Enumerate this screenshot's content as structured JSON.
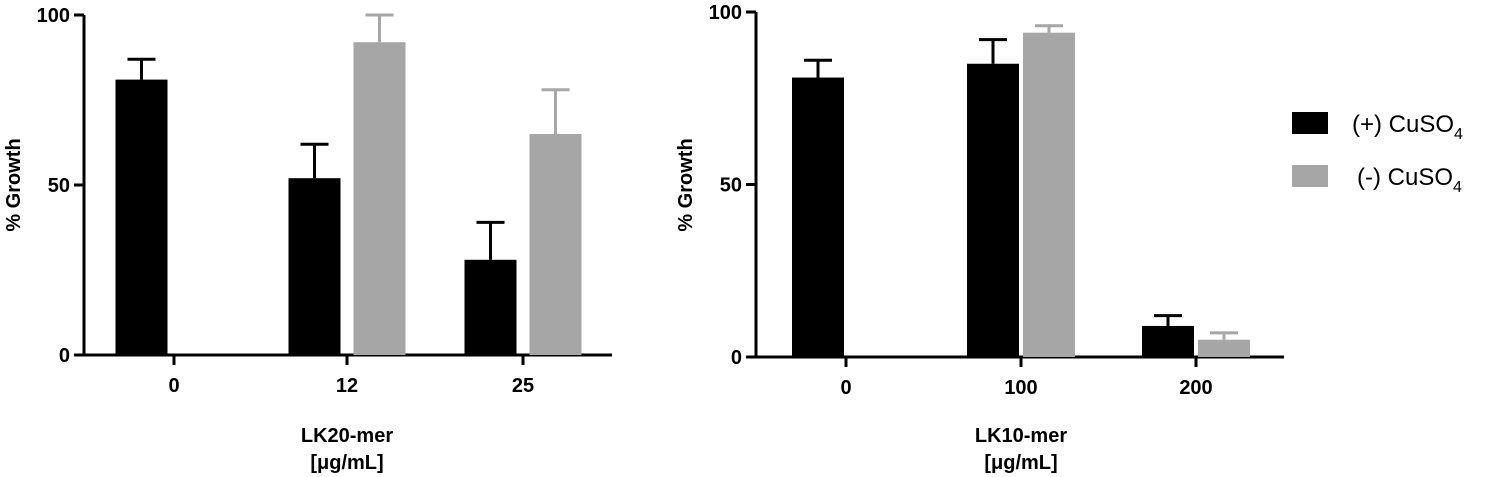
{
  "legend": {
    "position": "right",
    "items": [
      {
        "label": "(+) CuSO",
        "subscript": "4",
        "color": "#000000"
      },
      {
        "label": "(-) CuSO",
        "subscript": "4",
        "color": "#a6a6a6"
      }
    ]
  },
  "chart_data": [
    {
      "type": "bar",
      "title": "",
      "xlabel": "LK20-mer",
      "xlabel_line2": "[μg/mL]",
      "ylabel": "% Growth",
      "ylim": [
        0,
        100
      ],
      "yticks": [
        "0",
        "50",
        "100"
      ],
      "grid": false,
      "categories": [
        "0",
        "12",
        "25"
      ],
      "series": [
        {
          "name": "(+) CuSO4",
          "color": "#000000",
          "values": [
            81,
            52,
            28
          ],
          "errors": [
            6,
            10,
            11
          ]
        },
        {
          "name": "(-) CuSO4",
          "color": "#a6a6a6",
          "values": [
            0,
            92,
            65
          ],
          "errors": [
            0,
            8,
            13
          ]
        }
      ]
    },
    {
      "type": "bar",
      "title": "",
      "xlabel": "LK10-mer",
      "xlabel_line2": "[μg/mL]",
      "ylabel": "% Growth",
      "ylim": [
        0,
        100
      ],
      "yticks": [
        "0",
        "50",
        "100"
      ],
      "grid": false,
      "categories": [
        "0",
        "100",
        "200"
      ],
      "series": [
        {
          "name": "(+) CuSO4",
          "color": "#000000",
          "values": [
            81,
            85,
            9
          ],
          "errors": [
            5,
            7,
            3
          ]
        },
        {
          "name": "(-) CuSO4",
          "color": "#a6a6a6",
          "values": [
            0,
            94,
            5
          ],
          "errors": [
            0,
            2,
            2
          ]
        }
      ]
    }
  ]
}
